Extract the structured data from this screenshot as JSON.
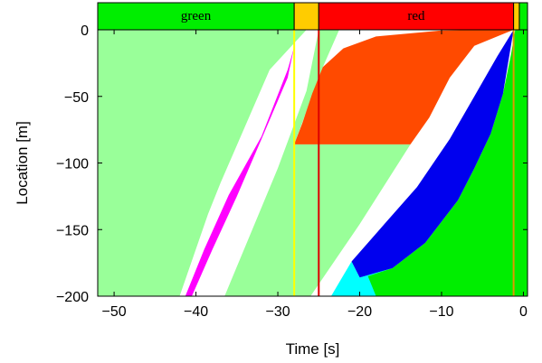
{
  "chart_data": {
    "type": "area",
    "xlabel": "Time [s]",
    "ylabel": "Location [m]",
    "xlim": [
      -52,
      0.5
    ],
    "ylim": [
      -200,
      0
    ],
    "xticks": [
      -50,
      -40,
      -30,
      -20,
      -10,
      0
    ],
    "yticks": [
      0,
      -50,
      -100,
      -150,
      -200
    ],
    "x_tick_labels": [
      "−50",
      "−40",
      "−30",
      "−20",
      "−10",
      "0"
    ],
    "y_tick_labels": [
      "0",
      "−50",
      "−100",
      "−150",
      "−200"
    ],
    "grid": false,
    "signal_phases": [
      {
        "label": "green",
        "start": -52,
        "end": -28,
        "color": "#00ee00"
      },
      {
        "label": "",
        "start": -28,
        "end": -25,
        "color": "#ffcc00"
      },
      {
        "label": "red",
        "start": -25,
        "end": -1.2,
        "color": "#ff0000"
      },
      {
        "label": "",
        "start": -1.2,
        "end": -0.5,
        "color": "#ffcc00"
      },
      {
        "label": "",
        "start": -0.5,
        "end": 0.5,
        "color": "#00ee00"
      }
    ],
    "phase_lines": [
      {
        "t": -28,
        "color": "#ffff00"
      },
      {
        "t": -25,
        "color": "#dd0000"
      },
      {
        "t": -1.2,
        "color": "#dd9900"
      }
    ],
    "regions": [
      {
        "color": "#99ff99",
        "points": [
          [
            -52,
            0
          ],
          [
            -26.5,
            0
          ],
          [
            -31,
            -30
          ],
          [
            -37,
            -115
          ],
          [
            -38.5,
            -138
          ],
          [
            -42,
            -200
          ],
          [
            -52,
            -200
          ]
        ]
      },
      {
        "color": "#99ff99",
        "points": [
          [
            -25,
            0
          ],
          [
            -22.5,
            0
          ],
          [
            -24.5,
            -28
          ],
          [
            -28,
            -86
          ],
          [
            -13.8,
            -86
          ],
          [
            -20,
            -146
          ],
          [
            -26,
            -200
          ],
          [
            -36.5,
            -200
          ],
          [
            -30,
            -104
          ],
          [
            -26.5,
            -46
          ]
        ]
      },
      {
        "color": "#00ee00",
        "points": [
          [
            -1,
            0
          ],
          [
            0.5,
            0
          ],
          [
            0.5,
            -200
          ],
          [
            -18,
            -200
          ],
          [
            -20,
            -186
          ],
          [
            -16,
            -179
          ],
          [
            -12,
            -160
          ],
          [
            -8,
            -128
          ],
          [
            -6,
            -104
          ],
          [
            -4,
            -78
          ],
          [
            -2.5,
            -48
          ],
          [
            -1.5,
            -18
          ]
        ]
      },
      {
        "color": "#ff00ff",
        "points": [
          [
            -28,
            -13
          ],
          [
            -28.8,
            -36
          ],
          [
            -32,
            -82
          ],
          [
            -35,
            -125
          ],
          [
            -38,
            -165
          ],
          [
            -40.5,
            -200
          ],
          [
            -41.3,
            -200
          ],
          [
            -39,
            -165
          ],
          [
            -36,
            -124
          ],
          [
            -32,
            -80
          ],
          [
            -28.8,
            -30
          ]
        ]
      },
      {
        "color": "#ff4a00",
        "points": [
          [
            -25.8,
            -48
          ],
          [
            -24.5,
            -28
          ],
          [
            -22,
            -14
          ],
          [
            -18,
            -5
          ],
          [
            -10,
            -0.5
          ],
          [
            -1.2,
            0
          ],
          [
            -2,
            -2
          ],
          [
            -6,
            -12
          ],
          [
            -9,
            -36
          ],
          [
            -11.5,
            -66
          ],
          [
            -13.8,
            -86
          ],
          [
            -28,
            -86
          ],
          [
            -27,
            -70
          ]
        ]
      },
      {
        "color": "#0000ee",
        "points": [
          [
            -1.2,
            0
          ],
          [
            -2.5,
            -48
          ],
          [
            -4,
            -78
          ],
          [
            -6,
            -104
          ],
          [
            -8,
            -128
          ],
          [
            -12,
            -160
          ],
          [
            -16,
            -179
          ],
          [
            -20,
            -186
          ],
          [
            -21,
            -174
          ],
          [
            -17,
            -146
          ],
          [
            -13,
            -118
          ],
          [
            -9,
            -82
          ],
          [
            -6,
            -50
          ],
          [
            -3.2,
            -20
          ]
        ]
      },
      {
        "color": "#00ffff",
        "points": [
          [
            -20,
            -186
          ],
          [
            -16,
            -179
          ],
          [
            -19,
            -185
          ],
          [
            -18,
            -200
          ],
          [
            -23.5,
            -200
          ],
          [
            -21,
            -174
          ]
        ]
      }
    ]
  }
}
